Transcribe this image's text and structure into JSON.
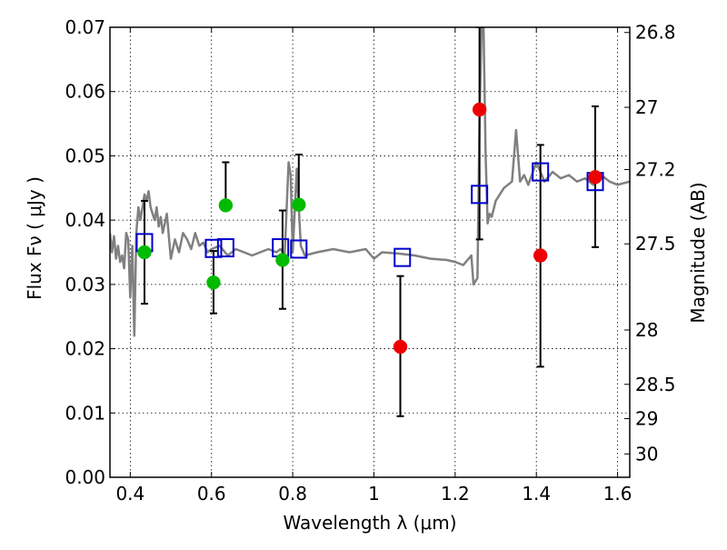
{
  "chart_data": {
    "type": "scatter",
    "title": "",
    "xlabel": "Wavelength  λ (μm)",
    "ylabel": "Flux  Fν  ( μJy )",
    "y2label": "Magnitude (AB)",
    "xlim": [
      0.35,
      1.63
    ],
    "ylim": [
      0.0,
      0.07
    ],
    "grid": true,
    "x_ticks": [
      {
        "value": 0.4,
        "label": "0.4"
      },
      {
        "value": 0.6,
        "label": "0.6"
      },
      {
        "value": 0.8,
        "label": "0.8"
      },
      {
        "value": 1.0,
        "label": "1"
      },
      {
        "value": 1.2,
        "label": "1.2"
      },
      {
        "value": 1.4,
        "label": "1.4"
      },
      {
        "value": 1.6,
        "label": "1.6"
      }
    ],
    "y_ticks": [
      {
        "value": 0.0,
        "label": "0.00"
      },
      {
        "value": 0.01,
        "label": "0.01"
      },
      {
        "value": 0.02,
        "label": "0.02"
      },
      {
        "value": 0.03,
        "label": "0.03"
      },
      {
        "value": 0.04,
        "label": "0.04"
      },
      {
        "value": 0.05,
        "label": "0.05"
      },
      {
        "value": 0.06,
        "label": "0.06"
      },
      {
        "value": 0.07,
        "label": "0.07"
      }
    ],
    "y2_ticks": [
      {
        "value": 26.8,
        "label": "26.8"
      },
      {
        "value": 27.0,
        "label": "27"
      },
      {
        "value": 27.2,
        "label": "27.2"
      },
      {
        "value": 27.5,
        "label": "27.5"
      },
      {
        "value": 28.0,
        "label": "28"
      },
      {
        "value": 28.5,
        "label": "28.5"
      },
      {
        "value": 29.0,
        "label": "29"
      },
      {
        "value": 30.0,
        "label": "30"
      }
    ],
    "series": [
      {
        "kind": "line",
        "color": "#808080",
        "x": [
          0.35,
          0.355,
          0.36,
          0.365,
          0.37,
          0.375,
          0.38,
          0.385,
          0.39,
          0.395,
          0.4,
          0.405,
          0.41,
          0.415,
          0.42,
          0.425,
          0.43,
          0.435,
          0.44,
          0.445,
          0.45,
          0.455,
          0.46,
          0.465,
          0.47,
          0.475,
          0.48,
          0.49,
          0.5,
          0.51,
          0.52,
          0.53,
          0.54,
          0.55,
          0.56,
          0.57,
          0.58,
          0.59,
          0.6,
          0.62,
          0.64,
          0.66,
          0.68,
          0.7,
          0.72,
          0.74,
          0.76,
          0.77,
          0.78,
          0.79,
          0.795,
          0.8,
          0.81,
          0.82,
          0.83,
          0.86,
          0.9,
          0.94,
          0.98,
          1.0,
          1.02,
          1.06,
          1.1,
          1.14,
          1.18,
          1.2,
          1.22,
          1.24,
          1.245,
          1.25,
          1.255,
          1.26,
          1.265,
          1.27,
          1.275,
          1.28,
          1.285,
          1.29,
          1.3,
          1.32,
          1.34,
          1.35,
          1.36,
          1.37,
          1.38,
          1.4,
          1.42,
          1.44,
          1.46,
          1.48,
          1.5,
          1.52,
          1.54,
          1.56,
          1.58,
          1.6,
          1.63
        ],
        "y": [
          0.038,
          0.035,
          0.0375,
          0.034,
          0.036,
          0.0335,
          0.0345,
          0.0325,
          0.038,
          0.037,
          0.028,
          0.036,
          0.022,
          0.038,
          0.042,
          0.04,
          0.042,
          0.044,
          0.043,
          0.0445,
          0.042,
          0.041,
          0.04,
          0.042,
          0.039,
          0.0405,
          0.038,
          0.041,
          0.034,
          0.037,
          0.035,
          0.038,
          0.037,
          0.0355,
          0.038,
          0.036,
          0.0365,
          0.035,
          0.0355,
          0.036,
          0.0345,
          0.0355,
          0.035,
          0.0345,
          0.035,
          0.0355,
          0.035,
          0.0355,
          0.0345,
          0.049,
          0.047,
          0.035,
          0.048,
          0.036,
          0.0345,
          0.035,
          0.0355,
          0.035,
          0.0355,
          0.034,
          0.035,
          0.0348,
          0.0345,
          0.034,
          0.0338,
          0.0335,
          0.033,
          0.0345,
          0.03,
          0.0305,
          0.031,
          0.056,
          0.07,
          0.07,
          0.05,
          0.0395,
          0.041,
          0.0405,
          0.043,
          0.045,
          0.046,
          0.054,
          0.046,
          0.047,
          0.0455,
          0.049,
          0.046,
          0.0475,
          0.0465,
          0.047,
          0.046,
          0.0465,
          0.0455,
          0.047,
          0.046,
          0.0455,
          0.046
        ]
      },
      {
        "kind": "open-square",
        "color": "#0000cc",
        "x": [
          0.435,
          0.605,
          0.635,
          0.77,
          0.815,
          1.07,
          1.26,
          1.41,
          1.545
        ],
        "y": [
          0.0365,
          0.0356,
          0.0357,
          0.0357,
          0.0355,
          0.0342,
          0.044,
          0.0475,
          0.046
        ]
      },
      {
        "kind": "filled-circle",
        "color": "#00bb00",
        "x": [
          0.435,
          0.605,
          0.635,
          0.775,
          0.815
        ],
        "y": [
          0.035,
          0.0303,
          0.0423,
          0.0338,
          0.0424
        ],
        "yerr_low": [
          0.027,
          0.0255,
          null,
          0.0262,
          null
        ],
        "yerr_high": [
          0.043,
          0.0352,
          0.049,
          0.0415,
          0.0502
        ]
      },
      {
        "kind": "filled-circle",
        "color": "#ee0000",
        "x": [
          1.065,
          1.26,
          1.41,
          1.545
        ],
        "y": [
          0.0203,
          0.0572,
          0.0345,
          0.0467
        ],
        "yerr_low": [
          0.0095,
          0.037,
          0.0172,
          0.0358
        ],
        "yerr_high": [
          0.0313,
          0.07,
          0.0517,
          0.0577
        ]
      }
    ]
  }
}
